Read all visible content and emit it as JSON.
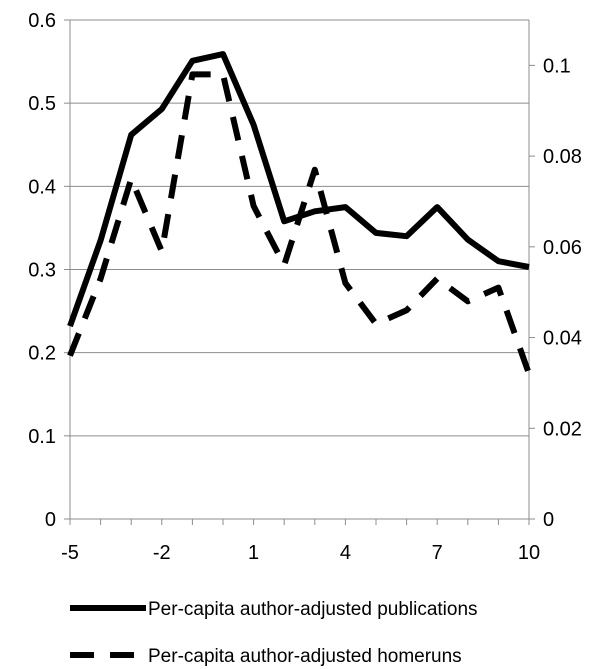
{
  "chart_data": {
    "type": "line",
    "title": "",
    "xlabel": "",
    "ylabel": "",
    "x": [
      -5,
      -4,
      -3,
      -2,
      -1,
      0,
      1,
      2,
      3,
      4,
      5,
      6,
      7,
      8,
      9,
      10
    ],
    "x_tick_labels": [
      "-5",
      "-2",
      "1",
      "4",
      "7",
      "10"
    ],
    "ylim_left": [
      0,
      0.6
    ],
    "ylim_right": [
      0,
      0.11
    ],
    "y_left_tick_labels": [
      "0",
      "0.1",
      "0.2",
      "0.3",
      "0.4",
      "0.5",
      "0.6"
    ],
    "y_right_tick_labels": [
      "0",
      "0.02",
      "0.04",
      "0.06",
      "0.08",
      "0.1"
    ],
    "grid": "horizontal",
    "legend_placement": "bottom",
    "series": [
      {
        "name": "Per-capita author-adjusted publications",
        "axis": "left",
        "style": "solid",
        "color": "#000000",
        "values": [
          0.232,
          0.335,
          0.462,
          0.493,
          0.551,
          0.559,
          0.474,
          0.358,
          0.37,
          0.375,
          0.344,
          0.34,
          0.375,
          0.336,
          0.31,
          0.303
        ]
      },
      {
        "name": "Per-capita author-adjusted homeruns",
        "axis": "right",
        "style": "dashed",
        "color": "#000000",
        "values": [
          0.036,
          0.053,
          0.075,
          0.059,
          0.098,
          0.098,
          0.069,
          0.056,
          0.077,
          0.052,
          0.043,
          0.046,
          0.053,
          0.048,
          0.051,
          0.032
        ]
      }
    ]
  }
}
